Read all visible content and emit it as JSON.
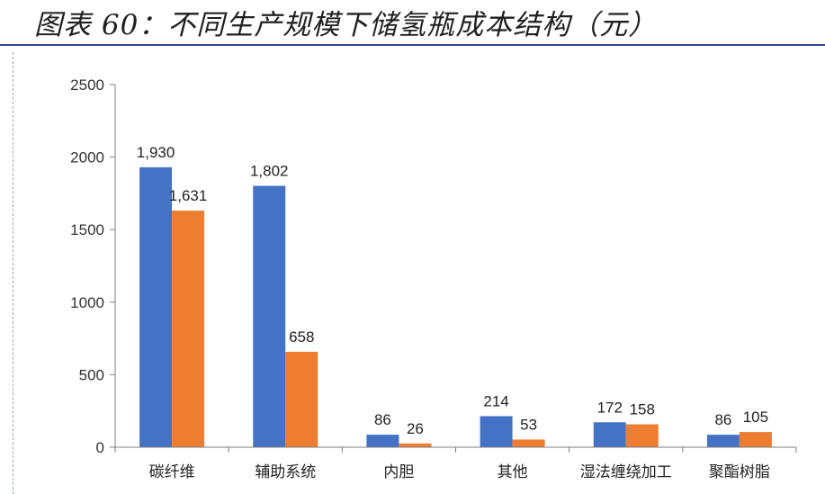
{
  "figure": {
    "title": "图表 60：不同生产规模下储氢瓶成本结构（元）"
  },
  "colors": {
    "series1": "#4472c4",
    "series2": "#ed7d31",
    "axis": "#7f7f7f",
    "title_rule": "#2e4b8f"
  },
  "chart_data": {
    "type": "bar",
    "title": "",
    "xlabel": "",
    "ylabel": "",
    "ylim": [
      0,
      2500
    ],
    "yticks": [
      0,
      500,
      1000,
      1500,
      2000,
      2500
    ],
    "grid": false,
    "categories": [
      "碳纤维",
      "辅助系统",
      "内胆",
      "其他",
      "湿法缠绕加工",
      "聚酯树脂"
    ],
    "series": [
      {
        "values": [
          1930,
          1802,
          86,
          214,
          172,
          86
        ],
        "labels": [
          "1,930",
          "1,802",
          "86",
          "214",
          "172",
          "86"
        ]
      },
      {
        "values": [
          1631,
          658,
          26,
          53,
          158,
          105
        ],
        "labels": [
          "1,631",
          "658",
          "26",
          "53",
          "158",
          "105"
        ]
      }
    ]
  }
}
